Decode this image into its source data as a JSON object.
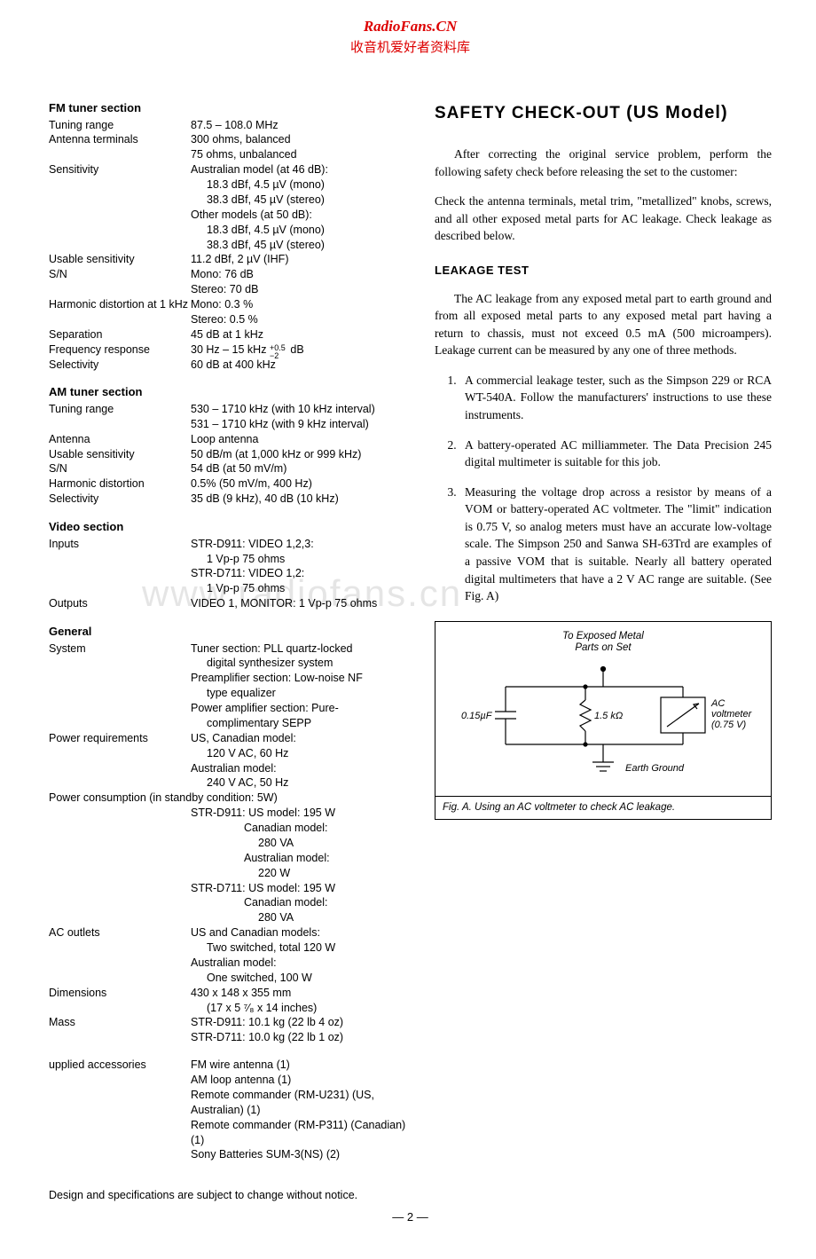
{
  "watermark": {
    "site": "RadioFans.CN",
    "subtitle": "收音机爱好者资料库",
    "center": "www.radiofans.cn"
  },
  "left": {
    "sections": [
      {
        "title": "FM tuner section",
        "rows": [
          {
            "label": "Tuning range",
            "values": [
              "87.5 – 108.0 MHz"
            ]
          },
          {
            "label": "Antenna terminals",
            "values": [
              "300 ohms, balanced",
              "75 ohms, unbalanced"
            ]
          },
          {
            "label": "Sensitivity",
            "values": [
              "Australian model (at 46 dB):",
              {
                "indent": "18.3 dBf, 4.5 µV (mono)"
              },
              {
                "indent": "38.3 dBf, 45 µV (stereo)"
              },
              "Other models (at 50 dB):",
              {
                "indent": "18.3 dBf, 4.5 µV (mono)"
              },
              {
                "indent": "38.3 dBf, 45 µV (stereo)"
              }
            ]
          },
          {
            "label": "Usable sensitivity",
            "values": [
              "11.2 dBf, 2 µV (IHF)"
            ]
          },
          {
            "label": "S/N",
            "values": [
              "Mono: 76 dB",
              "Stereo: 70 dB"
            ]
          },
          {
            "label": "Harmonic distortion at 1 kHz",
            "values": [
              "Mono: 0.3 %",
              "Stereo: 0.5 %"
            ],
            "wide": true
          },
          {
            "label": "Separation",
            "values": [
              "45 dB at 1 kHz"
            ]
          },
          {
            "label": "Frequency response",
            "values_html": "freq_resp"
          },
          {
            "label": "Selectivity",
            "values": [
              "60 dB at 400 kHz"
            ]
          }
        ]
      },
      {
        "title": "AM tuner section",
        "rows": [
          {
            "label": "Tuning range",
            "values": [
              "530 – 1710 kHz (with 10 kHz interval)",
              "531 – 1710 kHz (with 9 kHz interval)"
            ]
          },
          {
            "label": "Antenna",
            "values": [
              "Loop antenna"
            ]
          },
          {
            "label": "Usable sensitivity",
            "values": [
              "50 dB/m (at 1,000 kHz or 999 kHz)"
            ]
          },
          {
            "label": "S/N",
            "values": [
              "54 dB (at 50 mV/m)"
            ]
          },
          {
            "label": "Harmonic distortion",
            "values": [
              "0.5% (50 mV/m, 400 Hz)"
            ]
          },
          {
            "label": "Selectivity",
            "values": [
              "35 dB (9 kHz), 40 dB (10 kHz)"
            ]
          }
        ]
      },
      {
        "title": "Video section",
        "rows": [
          {
            "label": "Inputs",
            "values": [
              "STR-D911: VIDEO 1,2,3:",
              {
                "indent": "1 Vp-p 75 ohms"
              },
              "STR-D711: VIDEO 1,2:",
              {
                "indent": "1 Vp-p 75 ohms"
              }
            ]
          },
          {
            "label": "Outputs",
            "values": [
              "VIDEO 1, MONITOR: 1 Vp-p 75 ohms"
            ]
          }
        ]
      },
      {
        "title": "General",
        "rows": [
          {
            "label": "System",
            "values": [
              "",
              "Tuner section: PLL quartz-locked",
              {
                "indent": "digital synthesizer system"
              },
              "Preamplifier section: Low-noise NF",
              {
                "indent": "type equalizer"
              },
              "Power amplifier section: Pure-",
              {
                "indent": "complimentary SEPP"
              }
            ]
          },
          {
            "label": "Power requirements",
            "values": [
              "US, Canadian model:",
              {
                "indent": "120 V AC, 60 Hz"
              },
              "Australian model:",
              {
                "indent": "240 V AC, 50 Hz"
              }
            ]
          },
          {
            "label": "Power consumption (in standby condition: 5W)",
            "full": true,
            "values": [
              {
                "indent2": "STR-D911: US model: 195 W"
              },
              {
                "indent3": "Canadian model:"
              },
              {
                "indent4": "280 VA"
              },
              {
                "indent3": "Australian model:"
              },
              {
                "indent4": "220 W"
              },
              {
                "indent2": "STR-D711: US model: 195 W"
              },
              {
                "indent3": "Canadian model:"
              },
              {
                "indent4": "280 VA"
              }
            ]
          },
          {
            "label": "AC outlets",
            "values": [
              "US and Canadian models:",
              {
                "indent": "Two switched, total 120 W"
              },
              "Australian model:",
              {
                "indent": "One switched, 100 W"
              }
            ]
          },
          {
            "label": "Dimensions",
            "values": [
              "430 x 148 x 355 mm",
              {
                "indent_html": "dims_inches"
              }
            ]
          },
          {
            "label": "Mass",
            "values": [
              "STR-D911: 10.1 kg (22 lb 4 oz)",
              "STR-D711: 10.0 kg (22 lb 1 oz)"
            ]
          }
        ]
      },
      {
        "title": "",
        "spacer_before": true,
        "rows": [
          {
            "label": "upplied accessories",
            "values": [
              "FM wire antenna (1)",
              "AM loop antenna (1)",
              "Remote commander (RM-U231) (US, Australian) (1)",
              "Remote commander (RM-P311) (Canadian) (1)",
              "Sony Batteries SUM-3(NS) (2)"
            ]
          }
        ]
      }
    ],
    "freq_resp": {
      "prefix": "30 Hz – 15 kHz",
      "sup": "+0.5",
      "sub": "−2",
      "suffix": "dB"
    },
    "dims_inches": "(17 x 5 ⁷⁄₈ x 14 inches)",
    "bottom_note": "Design and specifications are subject to change without notice."
  },
  "right": {
    "title_main": "SAFETY CHECK-OUT",
    "title_paren": "(US Model)",
    "para1": "After correcting the original service problem, perform the following safety check before releasing the set to the customer:",
    "para2": "Check the antenna terminals, metal trim, \"metallized\" knobs, screws, and all other exposed metal parts for AC leakage. Check leakage as described below.",
    "leakage_head": "LEAKAGE TEST",
    "para3": "The AC leakage from any exposed metal part to earth ground and from all exposed metal parts to any exposed metal part having a return to chassis, must not exceed 0.5 mA (500 microampers). Leakage current can be measured by any one of three methods.",
    "methods": [
      "A commercial leakage tester, such as the Simpson 229 or RCA WT-540A. Follow the manufacturers' instructions to use these instruments.",
      "A battery-operated AC milliammeter. The Data Precision 245 digital multimeter is suitable for this job.",
      "Measuring the voltage drop across a resistor by means of a VOM or battery-operated AC voltmeter. The \"limit\" indication is 0.75 V, so analog meters must have an accurate low-voltage scale. The Simpson 250 and Sanwa SH-63Trd are examples of a passive VOM that is suitable. Nearly all battery operated digital multimeters that have a 2 V AC range are suitable. (See Fig. A)"
    ],
    "figure": {
      "top_label1": "To Exposed Metal",
      "top_label2": "Parts on Set",
      "cap_label": "0.15µF",
      "res_label": "1.5 kΩ",
      "meter_label1": "AC",
      "meter_label2": "voltmeter",
      "meter_label3": "(0.75 V)",
      "ground_label": "Earth Ground",
      "caption": "Fig. A.   Using an AC voltmeter to check AC leakage."
    }
  },
  "page_num": "— 2 —"
}
